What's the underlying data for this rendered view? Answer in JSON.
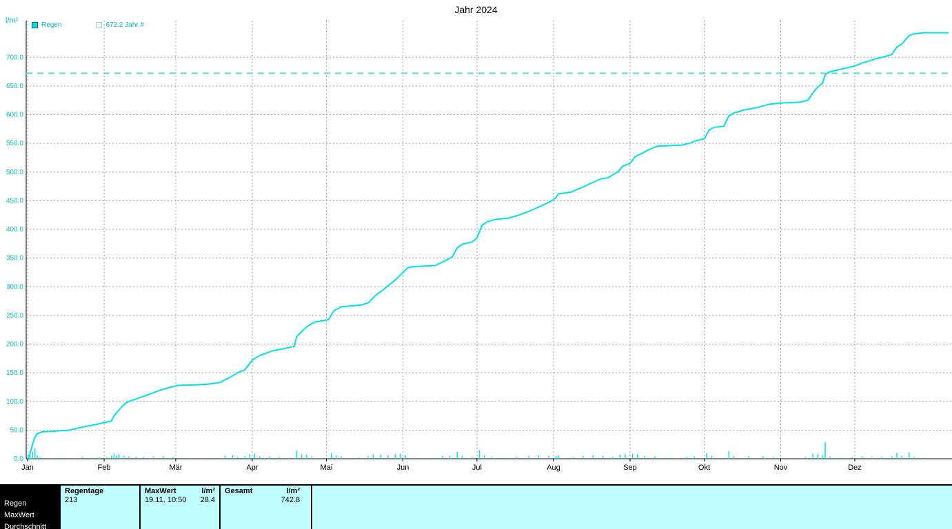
{
  "title": "Jahr 2024",
  "y_axis_unit": "l/m²",
  "legend": [
    {
      "label": "Regen",
      "swatch": "filled"
    },
    {
      "label": "672.2 Jahr #",
      "swatch": "outline"
    }
  ],
  "colors": {
    "series": "#00e2e2",
    "reference": "#55dede",
    "grid": "#9a9a9a",
    "axis_text": "#00bcbc",
    "axis_line": "#000000",
    "table_bg": "#c0ffff"
  },
  "chart_data": {
    "type": "line",
    "title": "Jahr 2024",
    "ylabel": "l/m²",
    "ylim": [
      0,
      764
    ],
    "yticks": [
      0,
      50,
      100,
      150,
      200,
      250,
      300,
      350,
      400,
      450,
      500,
      550,
      600,
      650,
      700
    ],
    "months": [
      "Jan",
      "Feb",
      "Mär",
      "Apr",
      "Mai",
      "Jun",
      "Jul",
      "Aug",
      "Sep",
      "Okt",
      "Nov",
      "Dez"
    ],
    "month_start_days": [
      1,
      32,
      61,
      92,
      122,
      153,
      183,
      214,
      245,
      275,
      306,
      336
    ],
    "reference_line": {
      "value": 672.2,
      "label": "672.2 Jahr #"
    },
    "series_name": "Regen",
    "cumulative": [
      [
        1,
        0
      ],
      [
        2,
        10
      ],
      [
        3,
        25
      ],
      [
        4,
        38
      ],
      [
        5,
        44
      ],
      [
        7,
        47
      ],
      [
        12,
        48
      ],
      [
        18,
        50
      ],
      [
        23,
        55
      ],
      [
        29,
        60
      ],
      [
        32,
        63
      ],
      [
        35,
        66
      ],
      [
        36,
        75
      ],
      [
        39,
        90
      ],
      [
        41,
        98
      ],
      [
        44,
        103
      ],
      [
        50,
        112
      ],
      [
        55,
        120
      ],
      [
        60,
        126
      ],
      [
        62,
        128
      ],
      [
        70,
        129
      ],
      [
        74,
        130
      ],
      [
        79,
        133
      ],
      [
        82,
        140
      ],
      [
        85,
        147
      ],
      [
        86,
        150
      ],
      [
        89,
        155
      ],
      [
        92,
        172
      ],
      [
        95,
        180
      ],
      [
        100,
        188
      ],
      [
        106,
        193
      ],
      [
        109,
        196
      ],
      [
        110,
        213
      ],
      [
        114,
        230
      ],
      [
        117,
        238
      ],
      [
        121,
        241
      ],
      [
        123,
        243
      ],
      [
        125,
        258
      ],
      [
        128,
        265
      ],
      [
        136,
        268
      ],
      [
        139,
        272
      ],
      [
        142,
        285
      ],
      [
        146,
        298
      ],
      [
        150,
        312
      ],
      [
        153,
        325
      ],
      [
        155,
        333
      ],
      [
        157,
        335
      ],
      [
        166,
        337
      ],
      [
        170,
        345
      ],
      [
        173,
        352
      ],
      [
        175,
        368
      ],
      [
        177,
        374
      ],
      [
        181,
        378
      ],
      [
        183,
        385
      ],
      [
        185,
        407
      ],
      [
        187,
        413
      ],
      [
        190,
        417
      ],
      [
        196,
        420
      ],
      [
        200,
        425
      ],
      [
        205,
        433
      ],
      [
        210,
        443
      ],
      [
        213,
        449
      ],
      [
        215,
        455
      ],
      [
        216,
        462
      ],
      [
        221,
        465
      ],
      [
        225,
        472
      ],
      [
        229,
        480
      ],
      [
        233,
        488
      ],
      [
        236,
        490
      ],
      [
        240,
        500
      ],
      [
        242,
        510
      ],
      [
        245,
        515
      ],
      [
        247,
        527
      ],
      [
        250,
        533
      ],
      [
        253,
        540
      ],
      [
        256,
        545
      ],
      [
        266,
        547
      ],
      [
        269,
        550
      ],
      [
        272,
        555
      ],
      [
        275,
        558
      ],
      [
        277,
        573
      ],
      [
        279,
        578
      ],
      [
        283,
        580
      ],
      [
        285,
        598
      ],
      [
        287,
        603
      ],
      [
        291,
        608
      ],
      [
        297,
        613
      ],
      [
        301,
        618
      ],
      [
        305,
        620
      ],
      [
        314,
        622
      ],
      [
        317,
        625
      ],
      [
        319,
        638
      ],
      [
        321,
        648
      ],
      [
        323,
        655
      ],
      [
        324,
        670
      ],
      [
        326,
        675
      ],
      [
        329,
        678
      ],
      [
        333,
        682
      ],
      [
        336,
        685
      ],
      [
        339,
        690
      ],
      [
        342,
        694
      ],
      [
        345,
        698
      ],
      [
        348,
        701
      ],
      [
        351,
        705
      ],
      [
        353,
        718
      ],
      [
        355,
        723
      ],
      [
        358,
        738
      ],
      [
        360,
        741
      ],
      [
        364,
        742.8
      ],
      [
        374,
        742.8
      ]
    ],
    "daily_bars": [
      [
        2,
        8
      ],
      [
        3,
        12
      ],
      [
        4,
        18
      ],
      [
        5,
        6
      ],
      [
        6,
        3
      ],
      [
        10,
        1
      ],
      [
        15,
        2
      ],
      [
        20,
        1
      ],
      [
        23,
        3
      ],
      [
        27,
        2
      ],
      [
        30,
        2
      ],
      [
        33,
        3
      ],
      [
        35,
        5
      ],
      [
        36,
        9
      ],
      [
        37,
        6
      ],
      [
        38,
        8
      ],
      [
        40,
        5
      ],
      [
        42,
        4
      ],
      [
        45,
        3
      ],
      [
        48,
        3
      ],
      [
        52,
        4
      ],
      [
        56,
        4
      ],
      [
        60,
        3
      ],
      [
        63,
        2
      ],
      [
        68,
        1
      ],
      [
        72,
        1
      ],
      [
        78,
        2
      ],
      [
        81,
        5
      ],
      [
        84,
        6
      ],
      [
        86,
        3
      ],
      [
        89,
        4
      ],
      [
        91,
        8
      ],
      [
        93,
        9
      ],
      [
        95,
        4
      ],
      [
        99,
        4
      ],
      [
        103,
        3
      ],
      [
        107,
        2
      ],
      [
        110,
        14
      ],
      [
        112,
        8
      ],
      [
        114,
        7
      ],
      [
        116,
        4
      ],
      [
        120,
        2
      ],
      [
        124,
        10
      ],
      [
        126,
        6
      ],
      [
        128,
        4
      ],
      [
        135,
        2
      ],
      [
        139,
        4
      ],
      [
        141,
        8
      ],
      [
        144,
        7
      ],
      [
        147,
        6
      ],
      [
        150,
        8
      ],
      [
        152,
        9
      ],
      [
        154,
        6
      ],
      [
        158,
        2
      ],
      [
        165,
        2
      ],
      [
        169,
        5
      ],
      [
        172,
        5
      ],
      [
        175,
        12
      ],
      [
        177,
        5
      ],
      [
        181,
        3
      ],
      [
        184,
        15
      ],
      [
        186,
        6
      ],
      [
        189,
        3
      ],
      [
        195,
        2
      ],
      [
        199,
        3
      ],
      [
        204,
        5
      ],
      [
        208,
        6
      ],
      [
        212,
        5
      ],
      [
        215,
        5
      ],
      [
        216,
        6
      ],
      [
        222,
        3
      ],
      [
        226,
        5
      ],
      [
        230,
        6
      ],
      [
        234,
        5
      ],
      [
        238,
        3
      ],
      [
        241,
        7
      ],
      [
        243,
        8
      ],
      [
        246,
        9
      ],
      [
        248,
        8
      ],
      [
        251,
        5
      ],
      [
        255,
        4
      ],
      [
        262,
        2
      ],
      [
        268,
        3
      ],
      [
        271,
        4
      ],
      [
        276,
        10
      ],
      [
        278,
        5
      ],
      [
        283,
        2
      ],
      [
        285,
        13
      ],
      [
        287,
        5
      ],
      [
        293,
        4
      ],
      [
        299,
        4
      ],
      [
        303,
        3
      ],
      [
        310,
        1
      ],
      [
        316,
        3
      ],
      [
        319,
        9
      ],
      [
        321,
        8
      ],
      [
        323,
        6
      ],
      [
        324,
        28.4
      ],
      [
        326,
        4
      ],
      [
        330,
        2
      ],
      [
        335,
        3
      ],
      [
        339,
        4
      ],
      [
        343,
        3
      ],
      [
        347,
        3
      ],
      [
        351,
        4
      ],
      [
        353,
        10
      ],
      [
        355,
        5
      ],
      [
        358,
        11
      ],
      [
        360,
        3
      ],
      [
        364,
        2
      ]
    ]
  },
  "footer_table": {
    "row_labels": [
      "Regen",
      "MaxWert",
      "Durchschnitt"
    ],
    "columns": [
      {
        "header": "Regentage",
        "unit": "",
        "value": "213",
        "value2": ""
      },
      {
        "header": "MaxWert",
        "unit": "l/m²",
        "value": "19.11. 10:50",
        "value2": "28.4"
      },
      {
        "header": "Gesamt",
        "unit": "l/m²",
        "value": "",
        "value2": "742.8"
      }
    ]
  }
}
